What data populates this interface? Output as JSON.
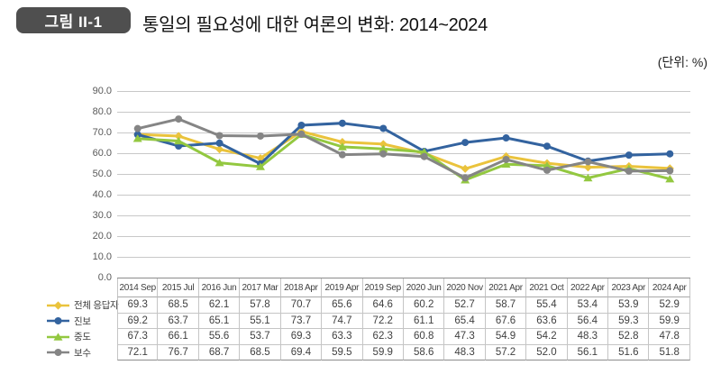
{
  "header": {
    "badge": "그림 II-1",
    "title": "통일의 필요성에 대한 여론의 변화: 2014~2024",
    "unit_label": "(단위:  %)"
  },
  "chart_data": {
    "type": "line",
    "title": "통일의 필요성에 대한 여론의 변화: 2014~2024",
    "unit": "%",
    "categories": [
      "2014 Sep",
      "2015 Jul",
      "2016 Jun",
      "2017 Mar",
      "2018 Apr",
      "2019 Apr",
      "2019 Sep",
      "2020 Jun",
      "2020 Nov",
      "2021 Apr",
      "2021 Oct",
      "2022 Apr",
      "2023 Apr",
      "2024 Apr"
    ],
    "series": [
      {
        "name": "전체 응답자",
        "color": "#EAC33C",
        "marker": "diamond",
        "values": [
          69.3,
          68.5,
          62.1,
          57.8,
          70.7,
          65.6,
          64.6,
          60.2,
          52.7,
          58.7,
          55.4,
          53.4,
          53.9,
          52.9
        ]
      },
      {
        "name": "진보",
        "color": "#33639F",
        "marker": "circle",
        "values": [
          69.2,
          63.7,
          65.1,
          55.1,
          73.7,
          74.7,
          72.2,
          61.1,
          65.4,
          67.6,
          63.6,
          56.4,
          59.3,
          59.9
        ]
      },
      {
        "name": "중도",
        "color": "#93C840",
        "marker": "triangle",
        "values": [
          67.3,
          66.1,
          55.6,
          53.7,
          69.3,
          63.3,
          62.3,
          60.8,
          47.3,
          54.9,
          54.2,
          48.3,
          52.8,
          47.8
        ]
      },
      {
        "name": "보수",
        "color": "#858585",
        "marker": "circle",
        "values": [
          72.1,
          76.7,
          68.7,
          68.5,
          69.4,
          59.5,
          59.9,
          58.6,
          48.3,
          57.2,
          52.0,
          56.1,
          51.6,
          51.8
        ]
      }
    ],
    "ylim": [
      0,
      90
    ],
    "y_ticks": [
      "90.0",
      "80.0",
      "70.0",
      "60.0",
      "50.0",
      "40.0",
      "30.0",
      "20.0",
      "10.0",
      "0.0"
    ],
    "grid": true,
    "gridline_color": "#c8c8c8",
    "axis_line_color": "#8c8c8c",
    "legend_position": "bottom-left",
    "value_format": "one-decimal"
  }
}
